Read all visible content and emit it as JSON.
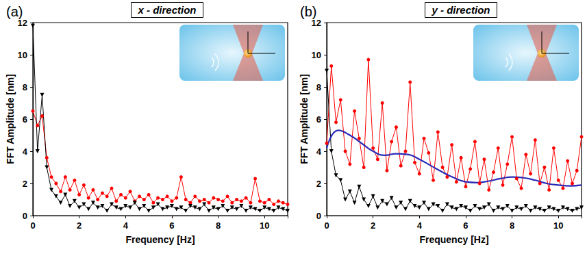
{
  "chart_data": [
    {
      "type": "line",
      "title": "x - direction",
      "panel_label": "(a)",
      "x_label": "Frequency [Hz]",
      "y_label": "FFT Amplitude [nm]",
      "xlim": [
        0,
        11
      ],
      "xticks": [
        0,
        2,
        4,
        6,
        8,
        10
      ],
      "ylim": [
        0,
        12
      ],
      "yticks": [
        0,
        2,
        4,
        6,
        8,
        10,
        12
      ],
      "grid": false,
      "x": [
        0,
        0.2,
        0.4,
        0.6,
        0.8,
        1,
        1.2,
        1.4,
        1.6,
        1.8,
        2,
        2.2,
        2.4,
        2.6,
        2.8,
        3,
        3.2,
        3.4,
        3.6,
        3.8,
        4,
        4.2,
        4.4,
        4.6,
        4.8,
        5,
        5.2,
        5.4,
        5.6,
        5.8,
        6,
        6.2,
        6.4,
        6.6,
        6.8,
        7,
        7.2,
        7.4,
        7.6,
        7.8,
        8,
        8.2,
        8.4,
        8.6,
        8.8,
        9,
        9.2,
        9.4,
        9.6,
        9.8,
        10,
        10.2,
        10.4,
        10.6,
        10.8,
        11
      ],
      "series": [
        {
          "color": "#ff0000",
          "marker": "circle",
          "line_style": "solid",
          "values": [
            6.5,
            5.6,
            6.2,
            3.6,
            2.4,
            2.0,
            1.5,
            2.4,
            1.6,
            2.2,
            1.3,
            1.9,
            1.1,
            1.6,
            1.0,
            1.4,
            1.2,
            1.7,
            0.9,
            1.3,
            1.1,
            1.5,
            0.9,
            1.2,
            1.0,
            1.3,
            0.8,
            1.1,
            1.0,
            1.2,
            0.9,
            1.1,
            2.4,
            1.0,
            0.8,
            1.2,
            0.9,
            1.0,
            0.8,
            1.1,
            1.0,
            0.9,
            1.2,
            0.8,
            1.0,
            0.9,
            1.1,
            0.8,
            2.3,
            0.9,
            0.8,
            1.0,
            0.7,
            0.9,
            0.8,
            0.7
          ]
        },
        {
          "color": "#000000",
          "marker": "triangle-down",
          "line_style": "solid",
          "values": [
            11.8,
            4.0,
            7.5,
            3.0,
            1.6,
            1.2,
            0.8,
            1.3,
            0.6,
            0.9,
            0.5,
            0.7,
            0.4,
            0.8,
            0.5,
            0.6,
            0.3,
            0.7,
            0.5,
            0.4,
            0.6,
            0.5,
            0.8,
            0.4,
            0.6,
            0.3,
            0.5,
            0.7,
            0.4,
            0.5,
            0.6,
            0.4,
            0.5,
            0.3,
            0.6,
            0.5,
            0.4,
            0.7,
            0.3,
            0.5,
            0.4,
            0.6,
            0.3,
            0.5,
            0.4,
            0.6,
            0.3,
            0.5,
            0.4,
            0.3,
            0.5,
            0.4,
            0.3,
            0.5,
            0.4,
            0.3
          ]
        }
      ]
    },
    {
      "type": "line",
      "title": "y - direction",
      "panel_label": "(b)",
      "x_label": "Frequency [Hz]",
      "y_label": "FFT Amplitude [nm]",
      "xlim": [
        0,
        11
      ],
      "xticks": [
        0,
        2,
        4,
        6,
        8,
        10
      ],
      "ylim": [
        0,
        12
      ],
      "yticks": [
        0,
        2,
        4,
        6,
        8,
        10,
        12
      ],
      "grid": false,
      "x": [
        0,
        0.2,
        0.4,
        0.6,
        0.8,
        1,
        1.2,
        1.4,
        1.6,
        1.8,
        2,
        2.2,
        2.4,
        2.6,
        2.8,
        3,
        3.2,
        3.4,
        3.6,
        3.8,
        4,
        4.2,
        4.4,
        4.6,
        4.8,
        5,
        5.2,
        5.4,
        5.6,
        5.8,
        6,
        6.2,
        6.4,
        6.6,
        6.8,
        7,
        7.2,
        7.4,
        7.6,
        7.8,
        8,
        8.2,
        8.4,
        8.6,
        8.8,
        9,
        9.2,
        9.4,
        9.6,
        9.8,
        10,
        10.2,
        10.4,
        10.6,
        10.8,
        11
      ],
      "series": [
        {
          "color": "#ff0000",
          "marker": "circle",
          "line_style": "solid",
          "values": [
            4.5,
            9.3,
            5.8,
            7.2,
            4.0,
            3.2,
            6.5,
            4.8,
            3.0,
            9.7,
            4.2,
            3.5,
            7.0,
            2.8,
            4.6,
            5.5,
            3.1,
            4.0,
            8.3,
            3.3,
            2.6,
            4.8,
            3.9,
            2.2,
            5.2,
            3.0,
            2.4,
            4.4,
            2.1,
            3.6,
            1.8,
            2.9,
            4.6,
            2.0,
            3.5,
            1.6,
            2.7,
            4.2,
            1.9,
            3.2,
            4.9,
            2.3,
            1.7,
            3.8,
            2.6,
            4.7,
            2.0,
            3.0,
            1.6,
            4.2,
            2.2,
            1.7,
            3.4,
            2.0,
            2.8,
            4.9
          ]
        },
        {
          "color": "#000000",
          "marker": "triangle-down",
          "line_style": "solid",
          "values": [
            9.0,
            4.0,
            2.5,
            2.2,
            1.0,
            1.5,
            0.8,
            1.8,
            1.0,
            0.6,
            1.2,
            0.5,
            0.9,
            0.7,
            1.1,
            0.5,
            0.8,
            0.4,
            0.9,
            0.6,
            0.5,
            0.8,
            0.4,
            0.7,
            0.6,
            0.3,
            0.7,
            0.5,
            0.4,
            0.6,
            0.5,
            0.3,
            0.6,
            0.4,
            0.5,
            0.7,
            0.3,
            0.5,
            0.4,
            0.6,
            0.3,
            0.5,
            0.4,
            0.6,
            0.3,
            0.5,
            0.4,
            0.3,
            0.5,
            0.4,
            0.3,
            0.5,
            0.4,
            0.3,
            0.4,
            0.5
          ]
        },
        {
          "color": "#2a2ab8",
          "marker": "none",
          "line_style": "smooth",
          "x": [
            0,
            0.5,
            1,
            1.5,
            2,
            2.5,
            3,
            3.5,
            4,
            4.5,
            5,
            5.5,
            6,
            6.5,
            7,
            7.5,
            8,
            8.5,
            9,
            9.5,
            10,
            10.5,
            11
          ],
          "values": [
            4.2,
            5.3,
            5.0,
            4.5,
            4.0,
            3.75,
            3.85,
            3.8,
            3.5,
            3.1,
            2.7,
            2.35,
            2.1,
            2.05,
            2.15,
            2.3,
            2.4,
            2.35,
            2.2,
            2.0,
            1.9,
            1.85,
            1.9
          ]
        }
      ]
    }
  ]
}
